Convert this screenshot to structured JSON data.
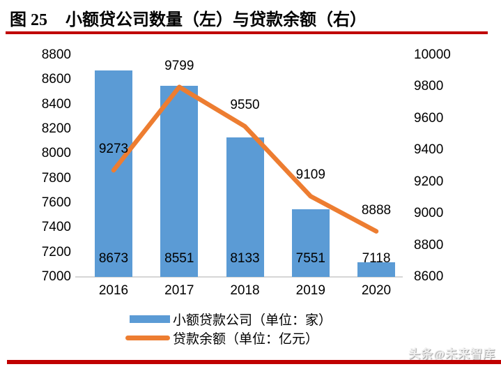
{
  "header": {
    "figure_label": "图 25",
    "title": "小额贷公司数量（左）与贷款余额（右）"
  },
  "chart_data": {
    "type": "bar",
    "subtype": "combo-bar-line-dual-axis",
    "title": "小额贷公司数量（左）与贷款余额（右）",
    "categories": [
      "2016",
      "2017",
      "2018",
      "2019",
      "2020"
    ],
    "series": [
      {
        "name": "小额贷款公司（单位：家）",
        "type": "bar",
        "axis": "left",
        "color": "#5b9bd5",
        "values": [
          8673,
          8551,
          8133,
          7551,
          7118
        ]
      },
      {
        "name": "贷款余额（单位：亿元）",
        "type": "line",
        "axis": "right",
        "color": "#ed7d31",
        "values": [
          9273,
          9799,
          9550,
          9109,
          8888
        ]
      }
    ],
    "left_axis": {
      "min": 7000,
      "max": 8800,
      "step": 200,
      "ticks": [
        8800,
        8600,
        8400,
        8200,
        8000,
        7800,
        7600,
        7400,
        7200,
        7000
      ]
    },
    "right_axis": {
      "min": 8600,
      "max": 10000,
      "step": 200,
      "ticks": [
        10000,
        9800,
        9600,
        9400,
        9200,
        9000,
        8800,
        8600
      ]
    },
    "grid": false,
    "legend_position": "bottom",
    "data_labels": true
  },
  "legend": {
    "bar_label": "小额贷款公司（单位：家）",
    "line_label": "贷款余额（单位：亿元）"
  },
  "watermark": {
    "text": "头条@未来智库"
  },
  "colors": {
    "bar": "#5b9bd5",
    "line": "#ed7d31",
    "accent_red": "#c00000",
    "axis_line": "#d6d6d6"
  }
}
